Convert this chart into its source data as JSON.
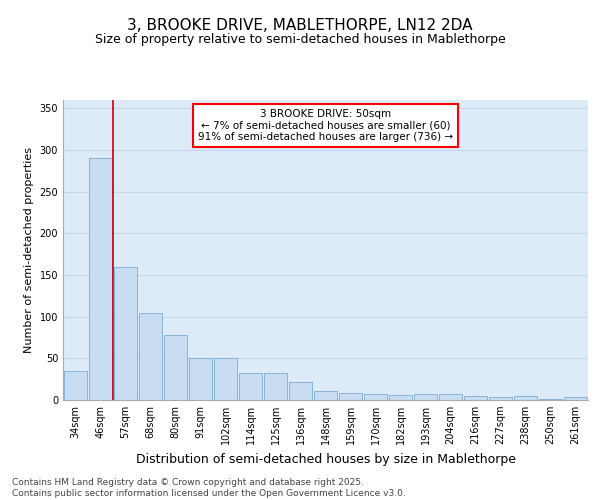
{
  "title": "3, BROOKE DRIVE, MABLETHORPE, LN12 2DA",
  "subtitle": "Size of property relative to semi-detached houses in Mablethorpe",
  "xlabel": "Distribution of semi-detached houses by size in Mablethorpe",
  "ylabel": "Number of semi-detached properties",
  "categories": [
    "34sqm",
    "46sqm",
    "57sqm",
    "68sqm",
    "80sqm",
    "91sqm",
    "102sqm",
    "114sqm",
    "125sqm",
    "136sqm",
    "148sqm",
    "159sqm",
    "170sqm",
    "182sqm",
    "193sqm",
    "204sqm",
    "216sqm",
    "227sqm",
    "238sqm",
    "250sqm",
    "261sqm"
  ],
  "values": [
    35,
    290,
    160,
    104,
    78,
    50,
    50,
    33,
    33,
    22,
    11,
    9,
    7,
    6,
    7,
    7,
    5,
    4,
    5,
    1,
    4
  ],
  "bar_color": "#c8ddf2",
  "bar_edge_color": "#7aadd4",
  "vline_x": 1.5,
  "vline_color": "#cc0000",
  "annotation_title": "3 BROOKE DRIVE: 50sqm",
  "annotation_line1": "← 7% of semi-detached houses are smaller (60)",
  "annotation_line2": "91% of semi-detached houses are larger (736) →",
  "ylim": [
    0,
    360
  ],
  "yticks": [
    0,
    50,
    100,
    150,
    200,
    250,
    300,
    350
  ],
  "grid_color": "#c8d8ec",
  "background_color": "#ddeaf8",
  "footer_line1": "Contains HM Land Registry data © Crown copyright and database right 2025.",
  "footer_line2": "Contains public sector information licensed under the Open Government Licence v3.0.",
  "title_fontsize": 11,
  "subtitle_fontsize": 9,
  "xlabel_fontsize": 9,
  "ylabel_fontsize": 8,
  "tick_fontsize": 7,
  "annotation_fontsize": 7.5,
  "footer_fontsize": 6.5
}
